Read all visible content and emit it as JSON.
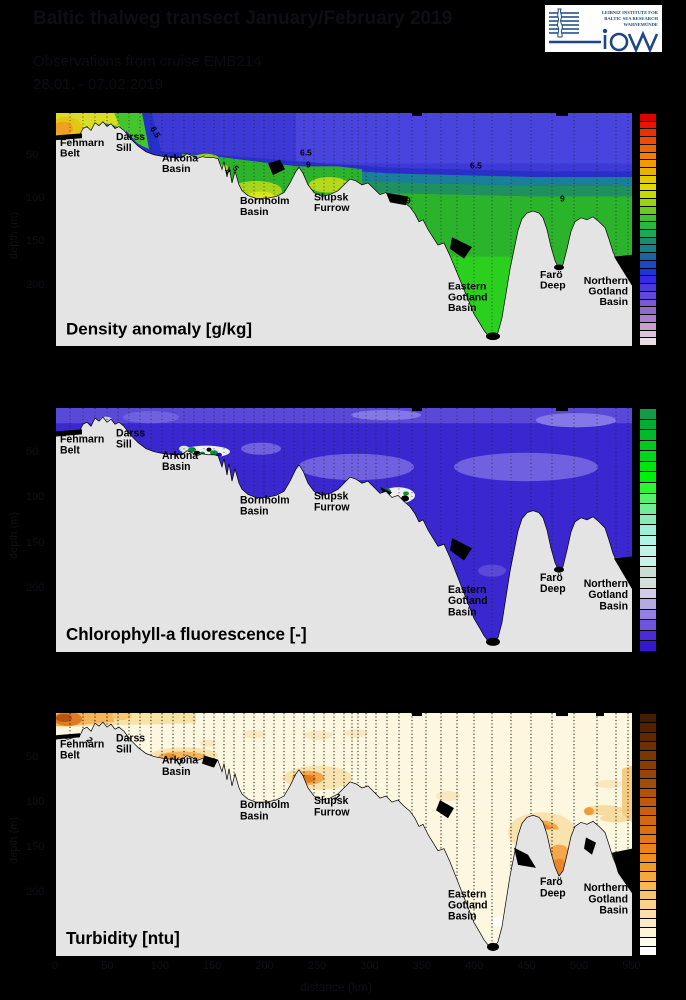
{
  "header": {
    "title": "Baltic thalweg transect January/February 2019",
    "line2": "Observations from cruise EMB214",
    "line3": "28.01. - 07.02.2019"
  },
  "logo": {
    "org_lines": [
      "Leibniz Institute for",
      "Baltic Sea Research",
      "Warnemünde"
    ],
    "wordmark": "iow",
    "color": "#1d4785",
    "bg": "#ffffff"
  },
  "stations": [
    {
      "lines": [
        "Fehmarn",
        "Belt"
      ]
    },
    {
      "lines": [
        "Darss",
        "Sill"
      ]
    },
    {
      "lines": [
        "Arkona",
        "Basin"
      ]
    },
    {
      "lines": [
        "Bornholm",
        "Basin"
      ]
    },
    {
      "lines": [
        "Slupsk",
        "Furrow"
      ]
    },
    {
      "lines": [
        "Eastern",
        "Gotland",
        "Basin"
      ]
    },
    {
      "lines": [
        "Farö",
        "Deep"
      ]
    },
    {
      "lines": [
        "Northern",
        "Gotland",
        "Basin"
      ]
    }
  ],
  "axes": {
    "depth_label": "depth (m)",
    "depth_ticks": [
      "50",
      "100",
      "150",
      "200"
    ],
    "distance_ticks": [
      "0",
      "50",
      "100",
      "150",
      "200",
      "250",
      "300",
      "350",
      "400",
      "450",
      "500",
      "550"
    ],
    "distance_label": "distance (km)"
  },
  "panels": [
    {
      "id": "density",
      "title": "Density anomaly [g/kg]",
      "contour_labels": [
        "6.5",
        "4",
        "5",
        "6.5",
        "9",
        "6.5",
        "9",
        "9"
      ],
      "colorbar": [
        "#dd0000",
        "#e61400",
        "#ee2e00",
        "#f24a00",
        "#f36400",
        "#f47e00",
        "#f29800",
        "#eab200",
        "#e2ca00",
        "#dcdc04",
        "#c4da00",
        "#9cd409",
        "#6cca1c",
        "#40c22e",
        "#24ba40",
        "#18aa56",
        "#188c74",
        "#187c8c",
        "#1864a4",
        "#1848c4",
        "#2134d8",
        "#3929e2",
        "#4d39e2",
        "#6349da",
        "#7a59d2",
        "#9169ca",
        "#a980ca",
        "#c2a0d2",
        "#d9c0dc",
        "#ecdce4"
      ]
    },
    {
      "id": "chla",
      "title": "Chlorophyll-a fluorescence [-]",
      "contour_labels": [],
      "colorbar": [
        "#0e9c46",
        "#00ae32",
        "#00ba2a",
        "#00c822",
        "#00d61a",
        "#00e412",
        "#00f00e",
        "#2af632",
        "#55f266",
        "#6eef96",
        "#86edb9",
        "#9af1d6",
        "#aff4e6",
        "#c0f3e8",
        "#caf1e6",
        "#c8ddd4",
        "#d3e0da",
        "#d2cde2",
        "#b6aae2",
        "#967fe2",
        "#6f52dd",
        "#4b2bd8",
        "#3517d1"
      ]
    },
    {
      "id": "turbidity",
      "title": "Turbidity [ntu]",
      "contour_labels": [
        "2",
        "1",
        "1"
      ],
      "colorbar": [
        "#471c00",
        "#542200",
        "#612800",
        "#6f2f02",
        "#7c3604",
        "#893d06",
        "#964408",
        "#a34b0a",
        "#b0520c",
        "#bd5a0e",
        "#c76110",
        "#d16812",
        "#da7014",
        "#e37916",
        "#ea8318",
        "#f08e20",
        "#f39a2e",
        "#f4a840",
        "#f6b656",
        "#f7c470",
        "#f9d28c",
        "#fadfa9",
        "#fcebc4",
        "#fdf4da",
        "#fefaec",
        "#ffffff"
      ]
    }
  ],
  "chart_data": [
    {
      "type": "heatmap",
      "title": "Density anomaly [g/kg]",
      "xlabel": "distance along Baltic thalweg (stations Fehmarn Belt to Northern Gotland Basin)",
      "ylabel": "depth (m), 0 at surface to ~250 m",
      "regions": [
        "Fehmarn Belt",
        "Darss Sill",
        "Arkona Basin",
        "Bornholm Basin",
        "Slupsk Furrow",
        "Eastern Gotland Basin",
        "Farö Deep",
        "Northern Gotland Basin"
      ],
      "labeled_contours": [
        4,
        5,
        6.5,
        9
      ],
      "pattern": "Low density (~4-6, yellow/green) surface water in Fehmarn Belt/Darss Sill in the west; blue surface layer (~6.5) east of Darss Sill; density increases with depth through 6.5 and 9 contours; green high-density bottom water fills Arkona, Bornholm, Slupsk and the deep Eastern Gotland, Farö and Northern Gotland basins",
      "colorbar_top_to_bottom": "red - orange - yellow - green - teal - blue - violet - pink",
      "legend_position": "right"
    },
    {
      "type": "heatmap",
      "title": "Chlorophyll-a fluorescence [-]",
      "xlabel": "distance along Baltic thalweg",
      "ylabel": "depth (m)",
      "regions": [
        "Fehmarn Belt",
        "Darss Sill",
        "Arkona Basin",
        "Bornholm Basin",
        "Slupsk Furrow",
        "Eastern Gotland Basin",
        "Farö Deep",
        "Northern Gotland Basin"
      ],
      "labeled_contours": [],
      "pattern": "Uniformly low winter fluorescence (deep blue/violet) through the whole section; slightly elevated (lighter violet) near-surface and mid-depth patches east of Slupsk Furrow; isolated high-fluorescence spots (white/green) at the seabed of the eastern Arkona Basin and east of Slupsk Furrow",
      "colorbar_top_to_bottom": "green (high) - pale green - cyan - white - lavender - blue/violet (low)",
      "legend_position": "right"
    },
    {
      "type": "heatmap",
      "title": "Turbidity [ntu]",
      "xlabel": "distance along Baltic thalweg",
      "ylabel": "depth (m)",
      "regions": [
        "Fehmarn Belt",
        "Darss Sill",
        "Arkona Basin",
        "Bornholm Basin",
        "Slupsk Furrow",
        "Eastern Gotland Basin",
        "Farö Deep",
        "Northern Gotland Basin"
      ],
      "labeled_contours": [
        1,
        2
      ],
      "pattern": "Mostly clear water (cream/white); elevated turbidity (orange, ~1-2 ntu) in the surface layer of Fehmarn Belt and Darss Sill, near the seabed of Arkona Basin and Slupsk Furrow, on the slope of the Eastern Gotland Basin, at the bottom of Farö Deep and around the Northern Gotland Basin",
      "colorbar_top_to_bottom": "dark brown (high) - orange - cream - white (low)",
      "legend_position": "right"
    }
  ]
}
